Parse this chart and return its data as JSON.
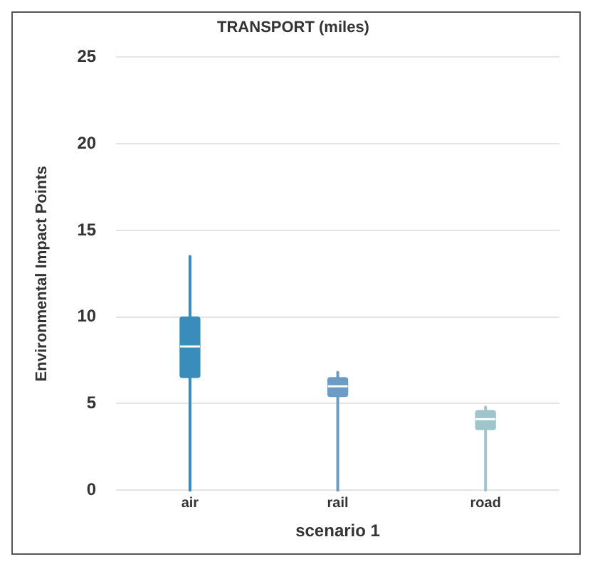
{
  "chart_data": {
    "type": "box",
    "title": "TRANSPORT (miles)",
    "xlabel": "scenario 1",
    "ylabel": "Environmental Impact Points",
    "categories": [
      "air",
      "rail",
      "road"
    ],
    "boxes": [
      {
        "low": 0,
        "q1": 6.5,
        "median": 8.3,
        "q3": 10,
        "high": 13.5
      },
      {
        "low": 0,
        "q1": 5.4,
        "median": 6,
        "q3": 6.5,
        "high": 6.8
      },
      {
        "low": 0,
        "q1": 3.5,
        "median": 4.1,
        "q3": 4.6,
        "high": 4.8
      }
    ],
    "colors": [
      "#3a8dba",
      "#6b9cc6",
      "#9fc4cc"
    ],
    "ylim": [
      0,
      25
    ],
    "yticks": [
      0,
      5,
      10,
      15,
      20,
      25
    ],
    "grid": "y",
    "legend": false
  }
}
